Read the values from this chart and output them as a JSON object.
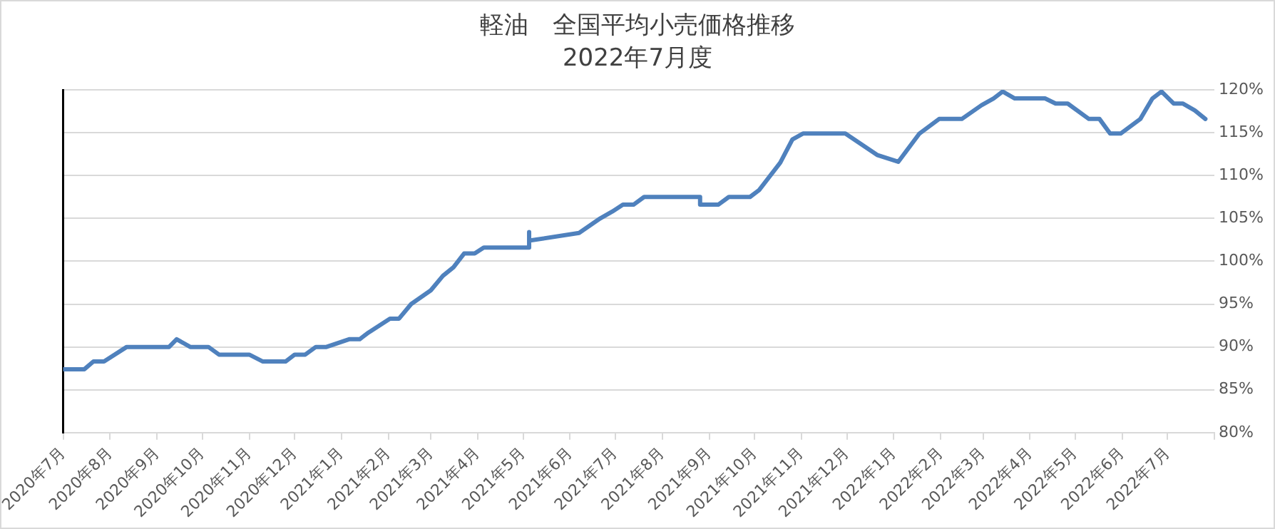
{
  "chart_data": {
    "type": "line",
    "title": "軽油　全国平均小売価格推移",
    "subtitle": "2022年7月度",
    "x": [
      "2020-07-01",
      "2020-07-15",
      "2020-07-21",
      "2020-07-28",
      "2020-08-12",
      "2020-09-09",
      "2020-09-14",
      "2020-09-23",
      "2020-10-05",
      "2020-10-12",
      "2020-11-01",
      "2020-11-10",
      "2020-11-25",
      "2020-12-01",
      "2020-12-08",
      "2020-12-15",
      "2020-12-22",
      "2021-01-06",
      "2021-01-13",
      "2021-01-19",
      "2021-02-02",
      "2021-02-08",
      "2021-02-16",
      "2021-03-01",
      "2021-03-09",
      "2021-03-16",
      "2021-03-23",
      "2021-03-30",
      "2021-04-05",
      "2021-05-05",
      "2021-05-05",
      "2021-05-05",
      "2021-06-07",
      "2021-06-21",
      "2021-06-29",
      "2021-07-06",
      "2021-07-13",
      "2021-07-20",
      "2021-08-26",
      "2021-08-26",
      "2021-09-07",
      "2021-09-14",
      "2021-09-28",
      "2021-10-04",
      "2021-10-18",
      "2021-10-26",
      "2021-11-02",
      "2021-11-30",
      "2021-12-21",
      "2022-01-04",
      "2022-01-18",
      "2022-01-31",
      "2022-02-15",
      "2022-02-28",
      "2022-03-08",
      "2022-03-14",
      "2022-03-22",
      "2022-04-11",
      "2022-04-18",
      "2022-04-26",
      "2022-05-10",
      "2022-05-17",
      "2022-05-24",
      "2022-05-31",
      "2022-06-13",
      "2022-06-21",
      "2022-06-27",
      "2022-07-05",
      "2022-07-11",
      "2022-07-19",
      "2022-07-26"
    ],
    "series": [
      {
        "color": "#4f81bd",
        "values": [
          87.4,
          87.4,
          88.3,
          88.3,
          90.0,
          90.0,
          90.9,
          90.0,
          90.0,
          89.1,
          89.1,
          88.3,
          88.3,
          89.1,
          89.1,
          90.0,
          90.0,
          90.9,
          90.9,
          91.7,
          93.3,
          93.3,
          95.0,
          96.6,
          98.3,
          99.3,
          100.9,
          100.9,
          101.6,
          101.6,
          103.4,
          102.4,
          103.3,
          105.0,
          105.8,
          106.6,
          106.6,
          107.5,
          107.5,
          106.6,
          106.6,
          107.5,
          107.5,
          108.3,
          111.5,
          114.2,
          114.9,
          114.9,
          112.4,
          111.6,
          114.9,
          116.6,
          116.6,
          118.2,
          119.0,
          119.8,
          119.0,
          119.0,
          118.4,
          118.4,
          116.6,
          116.6,
          114.9,
          114.9,
          116.6,
          119.0,
          119.8,
          118.4,
          118.4,
          117.6,
          116.6
        ]
      }
    ],
    "xlim": [
      "2020-07-01",
      "2022-08-01"
    ],
    "xticks": [
      {
        "value": "2020-07-01",
        "label": "2020年7月"
      },
      {
        "value": "2020-08-01",
        "label": "2020年8月"
      },
      {
        "value": "2020-09-01",
        "label": "2020年9月"
      },
      {
        "value": "2020-10-01",
        "label": "2020年10月"
      },
      {
        "value": "2020-11-01",
        "label": "2020年11月"
      },
      {
        "value": "2020-12-01",
        "label": "2020年12月"
      },
      {
        "value": "2021-01-01",
        "label": "2021年1月"
      },
      {
        "value": "2021-02-01",
        "label": "2021年2月"
      },
      {
        "value": "2021-03-01",
        "label": "2021年3月"
      },
      {
        "value": "2021-04-01",
        "label": "2021年4月"
      },
      {
        "value": "2021-05-01",
        "label": "2021年5月"
      },
      {
        "value": "2021-06-01",
        "label": "2021年6月"
      },
      {
        "value": "2021-07-01",
        "label": "2021年7月"
      },
      {
        "value": "2021-08-01",
        "label": "2021年8月"
      },
      {
        "value": "2021-09-01",
        "label": "2021年9月"
      },
      {
        "value": "2021-10-01",
        "label": "2021年10月"
      },
      {
        "value": "2021-11-01",
        "label": "2021年11月"
      },
      {
        "value": "2021-12-01",
        "label": "2021年12月"
      },
      {
        "value": "2022-01-01",
        "label": "2022年1月"
      },
      {
        "value": "2022-02-01",
        "label": "2022年2月"
      },
      {
        "value": "2022-03-01",
        "label": "2022年3月"
      },
      {
        "value": "2022-04-01",
        "label": "2022年4月"
      },
      {
        "value": "2022-05-01",
        "label": "2022年5月"
      },
      {
        "value": "2022-06-01",
        "label": "2022年6月"
      },
      {
        "value": "2022-07-01",
        "label": "2022年7月"
      },
      {
        "value": "2022-08-01",
        "label": null
      }
    ],
    "ylim": [
      80,
      120
    ],
    "yticks": [
      {
        "value": 80,
        "label": "80%"
      },
      {
        "value": 85,
        "label": "85%"
      },
      {
        "value": 90,
        "label": "90%"
      },
      {
        "value": 95,
        "label": "95%"
      },
      {
        "value": 100,
        "label": "100%"
      },
      {
        "value": 105,
        "label": "105%"
      },
      {
        "value": 110,
        "label": "110%"
      },
      {
        "value": 115,
        "label": "115%"
      },
      {
        "value": 120,
        "label": "120%"
      }
    ],
    "grid": "y",
    "legend": false,
    "marker": "none",
    "line_style": "solid"
  }
}
